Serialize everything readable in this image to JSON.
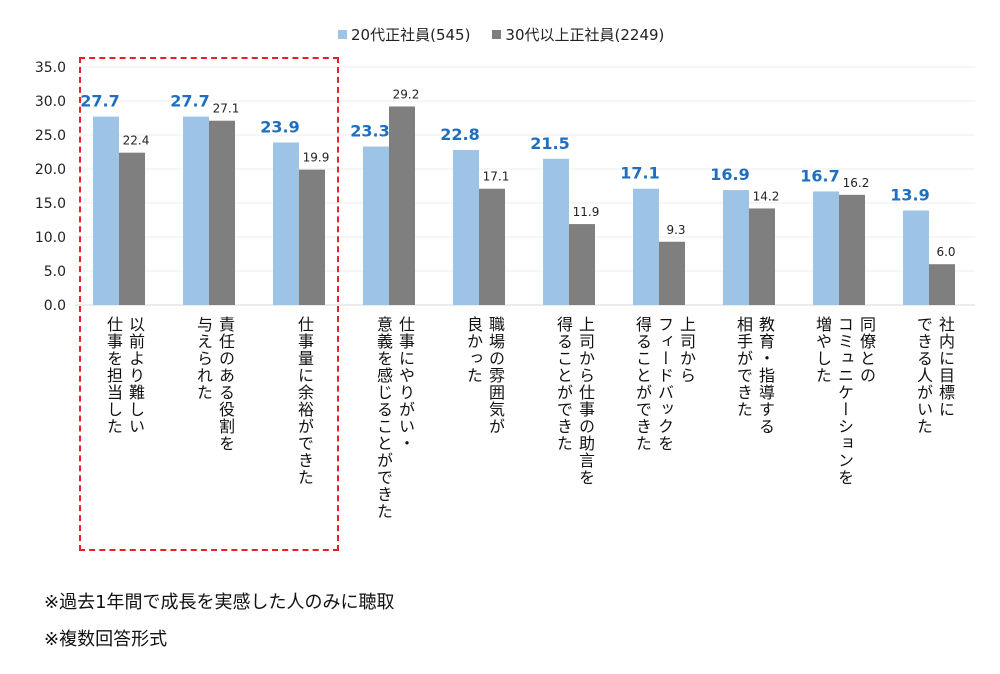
{
  "chart_data": {
    "type": "bar",
    "ylim": [
      0,
      35
    ],
    "yticks": [
      "0.0",
      "5.0",
      "10.0",
      "15.0",
      "20.0",
      "25.0",
      "30.0",
      "35.0"
    ],
    "grid": true,
    "legend_position": "top",
    "categories": [
      "以前より難しい\n仕事を担当した",
      "責任のある役割を\n与えられた",
      "仕事量に余裕ができた",
      "仕事にやりがい・\n意義を感じることができた",
      "職場の雰囲気が\n良かった",
      "上司から仕事の助言を\n得ることができた",
      "上司から\nフィードバックを\n得ることができた",
      "教育・指導する\n相手ができた",
      "同僚との\nコミュニケーションを\n増やした",
      "社内に目標に\nできる人がいた"
    ],
    "series": [
      {
        "name": "20代正社員(545)",
        "color": "#9dc3e6",
        "label_color": "#1f6fc0",
        "values": [
          27.7,
          27.7,
          23.9,
          23.3,
          22.8,
          21.5,
          17.1,
          16.9,
          16.7,
          13.9
        ]
      },
      {
        "name": "30代以上正社員(2249)",
        "color": "#7f7f7f",
        "label_color": "#222222",
        "values": [
          22.4,
          27.1,
          19.9,
          29.2,
          17.1,
          11.9,
          9.3,
          14.2,
          16.2,
          6.0
        ]
      }
    ],
    "highlight": {
      "categories": [
        0,
        1,
        2
      ],
      "color": "#e8202a",
      "style": "dashed"
    }
  },
  "notes": [
    "※過去1年間で成長を実感した人のみに聴取",
    "※複数回答形式"
  ]
}
